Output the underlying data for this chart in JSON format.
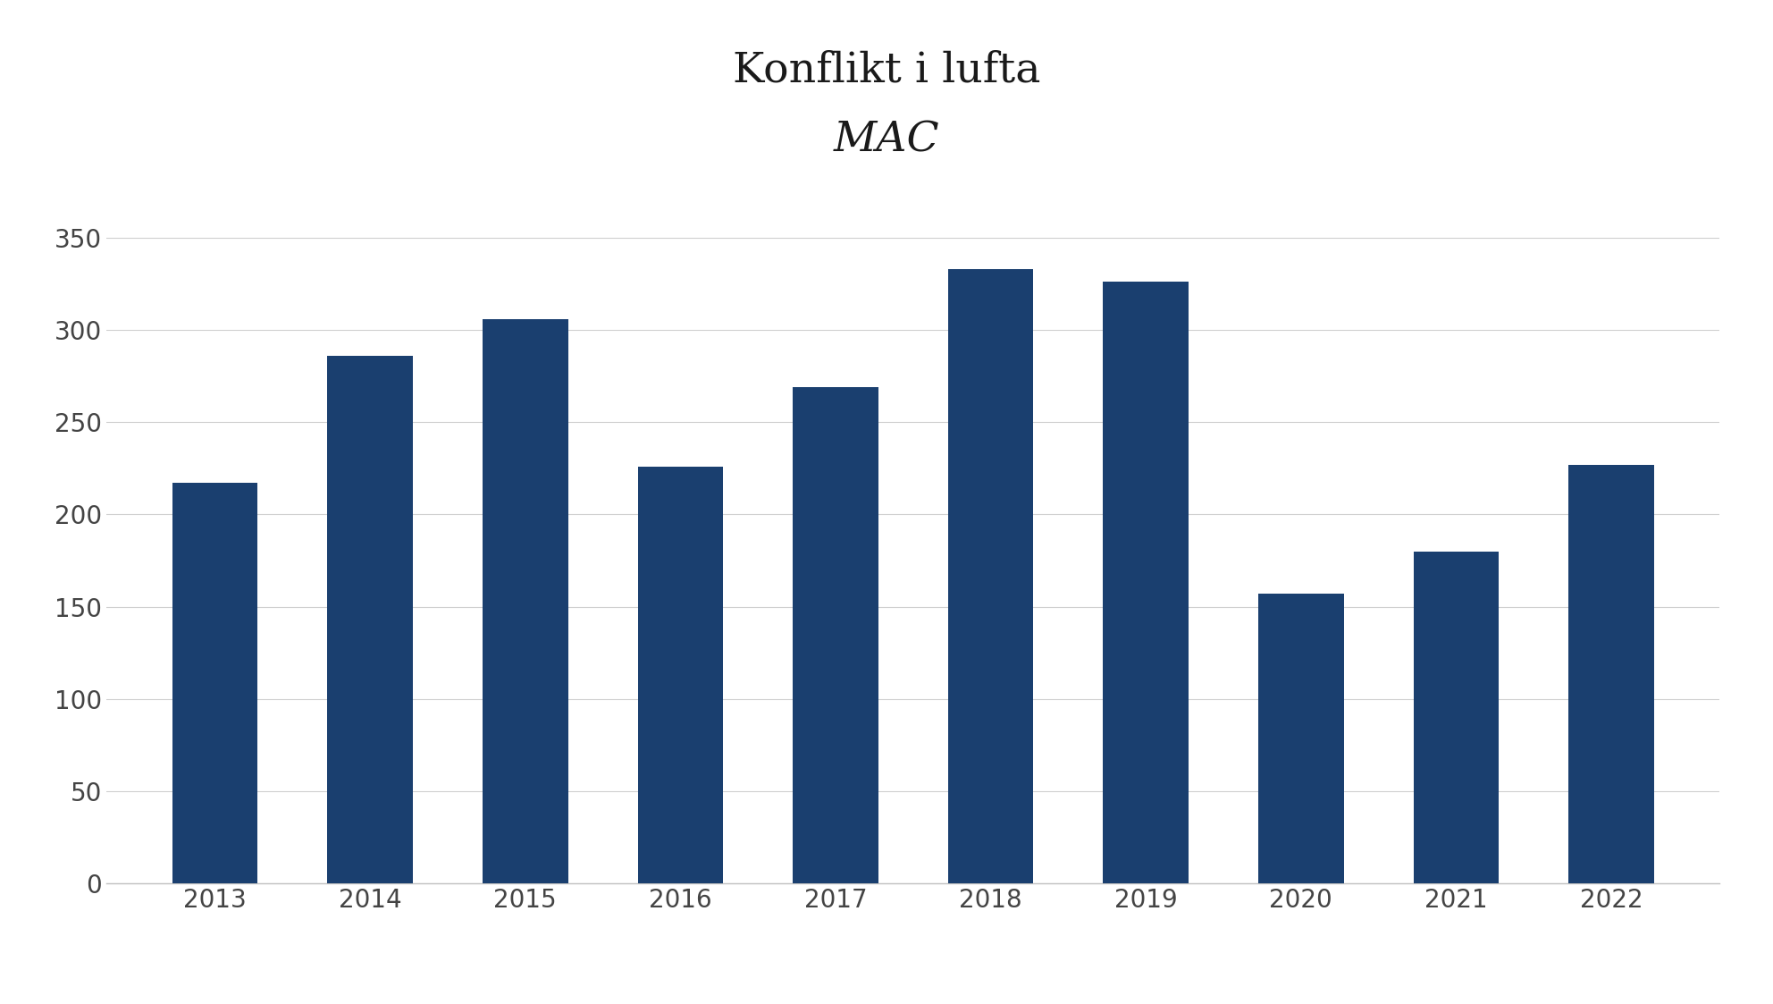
{
  "title_line1": "Konflikt i lufta",
  "title_line2": "MAC",
  "categories": [
    "2013",
    "2014",
    "2015",
    "2016",
    "2017",
    "2018",
    "2019",
    "2020",
    "2021",
    "2022"
  ],
  "values": [
    217,
    286,
    306,
    226,
    269,
    333,
    326,
    157,
    180,
    227
  ],
  "bar_color": "#1a3f6f",
  "background_color": "#ffffff",
  "ylim": [
    0,
    370
  ],
  "yticks": [
    0,
    50,
    100,
    150,
    200,
    250,
    300,
    350
  ],
  "grid_color": "#d0d0d0",
  "title_fontsize": 34,
  "subtitle_fontsize": 34,
  "tick_fontsize": 20,
  "bar_width": 0.55,
  "bottom_axis_color": "#c0c0c0"
}
